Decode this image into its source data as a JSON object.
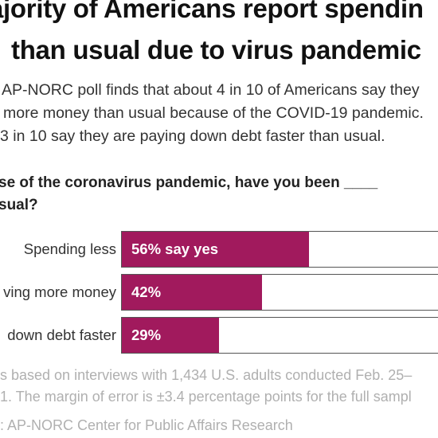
{
  "title_lines": [
    "ajority of Americans report spendin",
    "than usual due to virus pandemic"
  ],
  "subtitle_lines": [
    "AP-NORC poll finds that about 4 in 10 of Americans say they",
    "more money than usual because of the COVID-19 pandemic.",
    "3 in 10 say they are paying down debt faster than usual."
  ],
  "question_lines": [
    "se of the coronavirus pandemic, have you been ____",
    "sual?"
  ],
  "chart_data": {
    "type": "bar",
    "orientation": "horizontal",
    "categories": [
      "Spending less",
      "ving more money",
      "down debt faster"
    ],
    "values": [
      56,
      42,
      29
    ],
    "value_labels": [
      "56% say yes",
      "42%",
      "29%"
    ],
    "unit": "%",
    "xlim": [
      0,
      100
    ],
    "bar_color": "#a11a5d"
  },
  "footnote_lines": [
    "s based on interviews with 1,434 U.S. adults conducted Feb. 25–",
    "1. The margin of error is ±3.4 percentage points for the full sampl",
    ": AP-NORC Center for Public Affairs Research"
  ]
}
